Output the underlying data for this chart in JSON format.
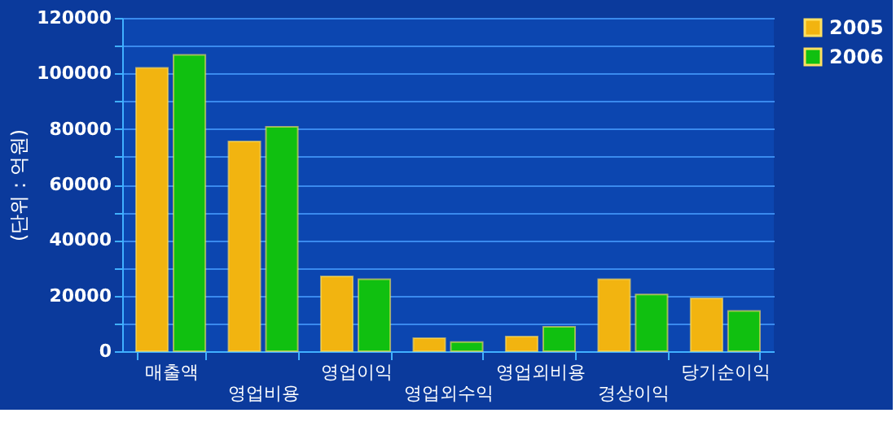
{
  "chart_data": {
    "type": "bar",
    "ylabel": "(단위 : 억원)",
    "categories": [
      "매출액",
      "영업비용",
      "영업이익",
      "영업외수익",
      "영업외비용",
      "경상이익",
      "당기순이익"
    ],
    "series": [
      {
        "name": "2005",
        "color": "#f2b410",
        "values": [
          102000,
          75500,
          26900,
          4700,
          5300,
          25900,
          19000
        ]
      },
      {
        "name": "2006",
        "color": "#10c010",
        "values": [
          106700,
          80800,
          25900,
          3300,
          8800,
          20400,
          14500
        ]
      }
    ],
    "ylim": [
      0,
      120000
    ],
    "yticks": [
      0,
      {
        "value": 10000,
        "label": null
      },
      20000,
      {
        "value": 30000,
        "label": null
      },
      40000,
      {
        "value": 50000,
        "label": null
      },
      60000,
      {
        "value": 70000,
        "label": null
      },
      80000,
      {
        "value": 90000,
        "label": null
      },
      100000,
      {
        "value": 110000,
        "label": null
      },
      120000
    ],
    "grid": "y",
    "legend": "right"
  }
}
